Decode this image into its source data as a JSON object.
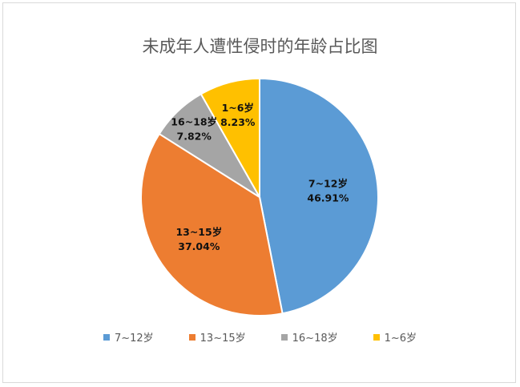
{
  "chart_data": {
    "type": "pie",
    "title": "未成年人遭性侵时的年龄占比图",
    "legend_position": "bottom",
    "slices": [
      {
        "label": "7~12岁",
        "value": 46.91,
        "value_label": "46.91%",
        "color": "#5b9bd5"
      },
      {
        "label": "13~15岁",
        "value": 37.04,
        "value_label": "37.04%",
        "color": "#ed7d31"
      },
      {
        "label": "16~18岁",
        "value": 7.82,
        "value_label": "7.82%",
        "color": "#a5a5a5"
      },
      {
        "label": "1~6岁",
        "value": 8.23,
        "value_label": "8.23%",
        "color": "#ffc000"
      }
    ]
  }
}
